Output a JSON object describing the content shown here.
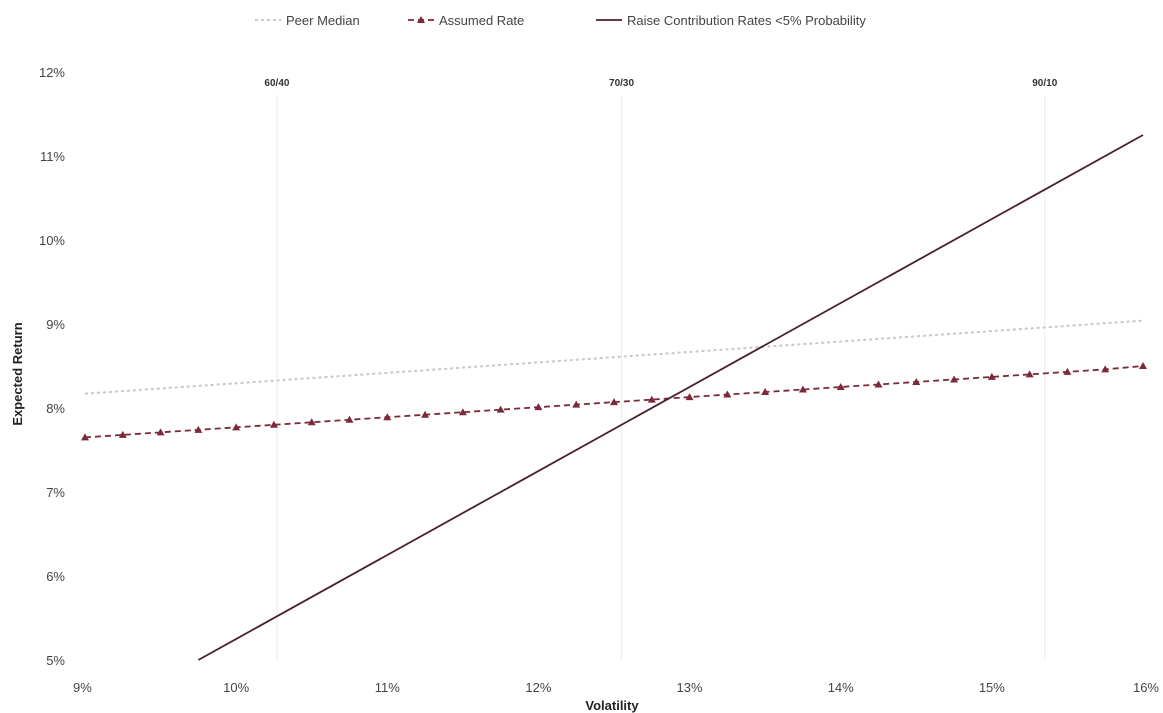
{
  "chart_data": {
    "type": "line",
    "xlabel": "Volatility",
    "ylabel": "Expected Return",
    "xlim": [
      9,
      16
    ],
    "ylim": [
      5,
      12
    ],
    "x_ticks": [
      "9%",
      "10%",
      "11%",
      "12%",
      "13%",
      "14%",
      "15%",
      "16%"
    ],
    "y_ticks": [
      "5%",
      "6%",
      "7%",
      "8%",
      "9%",
      "10%",
      "11%",
      "12%"
    ],
    "grid": false,
    "legend_position": "top-center",
    "series": [
      {
        "name": "Peer Median",
        "style": "dotted",
        "color": "#c8c8c8",
        "x": [
          9,
          16
        ],
        "y": [
          8.17,
          9.04
        ]
      },
      {
        "name": "Assumed Rate",
        "style": "dashed-triangle",
        "color": "#7a2a3a",
        "x": [
          9,
          9.25,
          9.5,
          9.75,
          10,
          10.25,
          10.5,
          10.75,
          11,
          11.25,
          11.5,
          11.75,
          12,
          12.25,
          12.5,
          12.75,
          13,
          13.25,
          13.5,
          13.75,
          14,
          14.25,
          14.5,
          14.75,
          15,
          15.25,
          15.5,
          15.75,
          16
        ],
        "y": [
          7.65,
          7.68,
          7.71,
          7.74,
          7.77,
          7.8,
          7.83,
          7.86,
          7.89,
          7.92,
          7.95,
          7.98,
          8.01,
          8.04,
          8.07,
          8.1,
          8.13,
          8.16,
          8.19,
          8.22,
          8.25,
          8.28,
          8.31,
          8.34,
          8.37,
          8.4,
          8.43,
          8.46,
          8.5
        ]
      },
      {
        "name": "Raise Contribution Rates <5% Probability",
        "style": "solid",
        "color": "#4a2030",
        "x": [
          9.75,
          16
        ],
        "y": [
          5.0,
          11.25
        ]
      }
    ],
    "reference_lines": [
      {
        "label": "60/40",
        "x": 10.27
      },
      {
        "label": "70/30",
        "x": 12.55
      },
      {
        "label": "90/10",
        "x": 15.35
      }
    ]
  }
}
